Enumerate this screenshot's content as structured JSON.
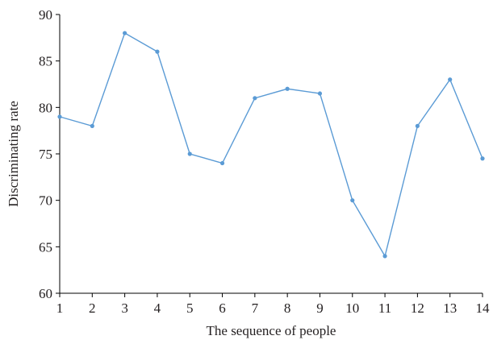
{
  "chart_data": {
    "type": "line",
    "xlabel": "The sequence of people",
    "ylabel": "Discriminating rate",
    "xlim": [
      1,
      14
    ],
    "ylim": [
      60,
      90
    ],
    "x_ticks": [
      1,
      2,
      3,
      4,
      5,
      6,
      7,
      8,
      9,
      10,
      11,
      12,
      13,
      14
    ],
    "y_ticks": [
      60,
      65,
      70,
      75,
      80,
      85,
      90
    ],
    "grid": false,
    "legend": "none",
    "series": [
      {
        "x": [
          1,
          2,
          3,
          4,
          5,
          6,
          7,
          8,
          9,
          10,
          11,
          12,
          13,
          14
        ],
        "values": [
          79,
          78,
          88,
          86,
          75,
          74,
          81,
          82,
          81.5,
          70,
          64,
          78,
          83,
          74.5
        ],
        "color": "#5b9bd5"
      }
    ]
  }
}
